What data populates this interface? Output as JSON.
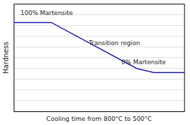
{
  "chart_data": {
    "type": "line",
    "x": [
      0.0,
      0.22,
      0.72,
      0.82,
      1.0
    ],
    "values": [
      0.87,
      0.87,
      0.42,
      0.38,
      0.38
    ],
    "color": "#1a1aaa",
    "xlim": [
      0.0,
      1.0
    ],
    "ylim": [
      0.0,
      1.05
    ],
    "xticks": [],
    "yticks": [
      0,
      0.105,
      0.21,
      0.315,
      0.42,
      0.525,
      0.63,
      0.735,
      0.84,
      0.945,
      1.05
    ],
    "grid": true,
    "tick_labels": false,
    "xlabel": "Cooling time from 800°C to 500°C",
    "ylabel": "Hardness",
    "annotations": [
      "100% Martensite",
      "Transition region",
      "0% Martensite"
    ]
  }
}
